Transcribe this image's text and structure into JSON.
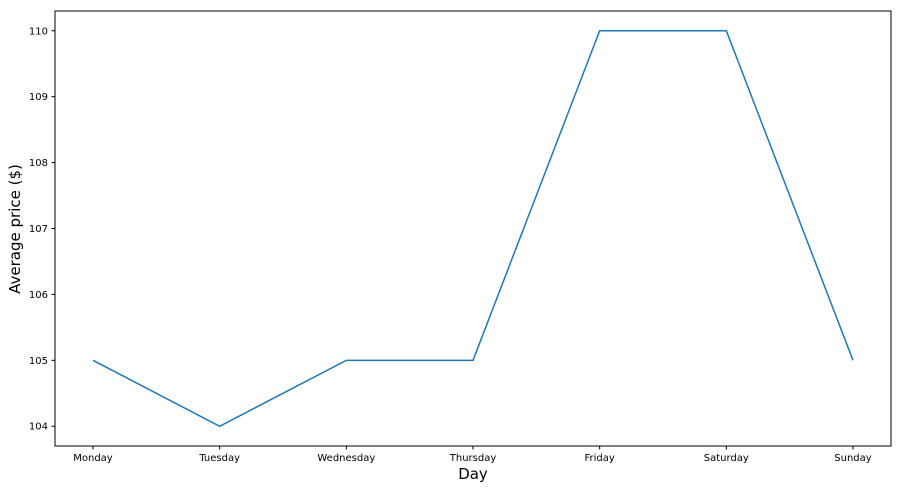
{
  "chart_data": {
    "type": "line",
    "title": "",
    "xlabel": "Day",
    "ylabel": "Average price ($)",
    "categories": [
      "Monday",
      "Tuesday",
      "Wednesday",
      "Thursday",
      "Friday",
      "Saturday",
      "Sunday"
    ],
    "series": [
      {
        "values": [
          105,
          104,
          105,
          105,
          110,
          110,
          105
        ],
        "color": "#1f77b4"
      }
    ],
    "ylim": [
      103.7,
      110.3
    ],
    "yticks": [
      104,
      105,
      106,
      107,
      108,
      109,
      110
    ],
    "ytick_labels": [
      "104",
      "105",
      "106",
      "107",
      "108",
      "109",
      "110"
    ],
    "grid": false,
    "legend": "none"
  }
}
